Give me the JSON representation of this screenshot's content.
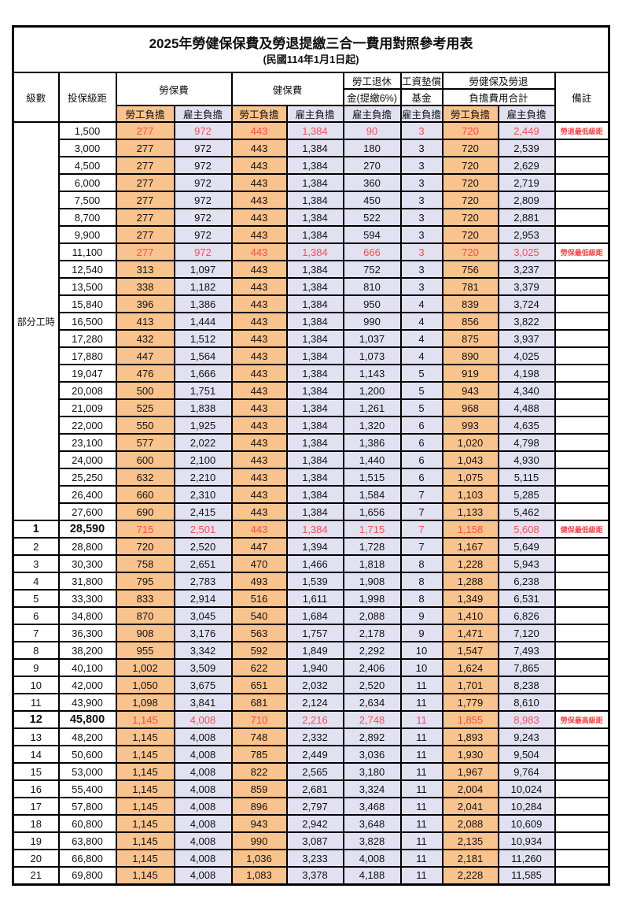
{
  "title": "2025年勞健保保費及勞退提繳三合一費用對照參考用表",
  "subtitle": "(民國114年1月1日起)",
  "colors": {
    "employee_bg": "#F9C38D",
    "employer_bg": "#E1E1F2",
    "highlight_text": "#FF4C4C",
    "border": "#000000"
  },
  "header": {
    "level": "級數",
    "salary_bracket": "投保級距",
    "labor_insurance": "勞保費",
    "health_insurance": "健保費",
    "pension_line1": "勞工退休",
    "pension_line2": "金(提繳6%)",
    "wage_fund_line1": "工資墊償",
    "wage_fund_line2": "基金",
    "total_line1": "勞健保及勞退",
    "total_line2": "負擔費用合計",
    "remarks": "備註",
    "employee_share": "勞工負擔",
    "employer_share": "雇主負擔"
  },
  "group_label": "部分工時",
  "rows": [
    {
      "group": true,
      "level": "",
      "salary": "1,500",
      "v": [
        "277",
        "972",
        "443",
        "1,384",
        "90",
        "3",
        "720",
        "2,449"
      ],
      "note": "勞退最低級距",
      "red": true,
      "bold": false
    },
    {
      "group": true,
      "level": "",
      "salary": "3,000",
      "v": [
        "277",
        "972",
        "443",
        "1,384",
        "180",
        "3",
        "720",
        "2,539"
      ],
      "note": "",
      "red": false,
      "bold": false
    },
    {
      "group": true,
      "level": "",
      "salary": "4,500",
      "v": [
        "277",
        "972",
        "443",
        "1,384",
        "270",
        "3",
        "720",
        "2,629"
      ],
      "note": "",
      "red": false,
      "bold": false
    },
    {
      "group": true,
      "level": "",
      "salary": "6,000",
      "v": [
        "277",
        "972",
        "443",
        "1,384",
        "360",
        "3",
        "720",
        "2,719"
      ],
      "note": "",
      "red": false,
      "bold": false
    },
    {
      "group": true,
      "level": "",
      "salary": "7,500",
      "v": [
        "277",
        "972",
        "443",
        "1,384",
        "450",
        "3",
        "720",
        "2,809"
      ],
      "note": "",
      "red": false,
      "bold": false
    },
    {
      "group": true,
      "level": "",
      "salary": "8,700",
      "v": [
        "277",
        "972",
        "443",
        "1,384",
        "522",
        "3",
        "720",
        "2,881"
      ],
      "note": "",
      "red": false,
      "bold": false
    },
    {
      "group": true,
      "level": "",
      "salary": "9,900",
      "v": [
        "277",
        "972",
        "443",
        "1,384",
        "594",
        "3",
        "720",
        "2,953"
      ],
      "note": "",
      "red": false,
      "bold": false
    },
    {
      "group": true,
      "level": "",
      "salary": "11,100",
      "v": [
        "277",
        "972",
        "443",
        "1,384",
        "666",
        "3",
        "720",
        "3,025"
      ],
      "note": "勞保最低級距",
      "red": true,
      "bold": false
    },
    {
      "group": true,
      "level": "",
      "salary": "12,540",
      "v": [
        "313",
        "1,097",
        "443",
        "1,384",
        "752",
        "3",
        "756",
        "3,237"
      ],
      "note": "",
      "red": false,
      "bold": false
    },
    {
      "group": true,
      "level": "",
      "salary": "13,500",
      "v": [
        "338",
        "1,182",
        "443",
        "1,384",
        "810",
        "3",
        "781",
        "3,379"
      ],
      "note": "",
      "red": false,
      "bold": false
    },
    {
      "group": true,
      "level": "",
      "salary": "15,840",
      "v": [
        "396",
        "1,386",
        "443",
        "1,384",
        "950",
        "4",
        "839",
        "3,724"
      ],
      "note": "",
      "red": false,
      "bold": false
    },
    {
      "group": true,
      "level": "",
      "salary": "16,500",
      "v": [
        "413",
        "1,444",
        "443",
        "1,384",
        "990",
        "4",
        "856",
        "3,822"
      ],
      "note": "",
      "red": false,
      "bold": false
    },
    {
      "group": true,
      "level": "",
      "salary": "17,280",
      "v": [
        "432",
        "1,512",
        "443",
        "1,384",
        "1,037",
        "4",
        "875",
        "3,937"
      ],
      "note": "",
      "red": false,
      "bold": false
    },
    {
      "group": true,
      "level": "",
      "salary": "17,880",
      "v": [
        "447",
        "1,564",
        "443",
        "1,384",
        "1,073",
        "4",
        "890",
        "4,025"
      ],
      "note": "",
      "red": false,
      "bold": false
    },
    {
      "group": true,
      "level": "",
      "salary": "19,047",
      "v": [
        "476",
        "1,666",
        "443",
        "1,384",
        "1,143",
        "5",
        "919",
        "4,198"
      ],
      "note": "",
      "red": false,
      "bold": false
    },
    {
      "group": true,
      "level": "",
      "salary": "20,008",
      "v": [
        "500",
        "1,751",
        "443",
        "1,384",
        "1,200",
        "5",
        "943",
        "4,340"
      ],
      "note": "",
      "red": false,
      "bold": false
    },
    {
      "group": true,
      "level": "",
      "salary": "21,009",
      "v": [
        "525",
        "1,838",
        "443",
        "1,384",
        "1,261",
        "5",
        "968",
        "4,488"
      ],
      "note": "",
      "red": false,
      "bold": false
    },
    {
      "group": true,
      "level": "",
      "salary": "22,000",
      "v": [
        "550",
        "1,925",
        "443",
        "1,384",
        "1,320",
        "6",
        "993",
        "4,635"
      ],
      "note": "",
      "red": false,
      "bold": false
    },
    {
      "group": true,
      "level": "",
      "salary": "23,100",
      "v": [
        "577",
        "2,022",
        "443",
        "1,384",
        "1,386",
        "6",
        "1,020",
        "4,798"
      ],
      "note": "",
      "red": false,
      "bold": false
    },
    {
      "group": true,
      "level": "",
      "salary": "24,000",
      "v": [
        "600",
        "2,100",
        "443",
        "1,384",
        "1,440",
        "6",
        "1,043",
        "4,930"
      ],
      "note": "",
      "red": false,
      "bold": false
    },
    {
      "group": true,
      "level": "",
      "salary": "25,250",
      "v": [
        "632",
        "2,210",
        "443",
        "1,384",
        "1,515",
        "6",
        "1,075",
        "5,115"
      ],
      "note": "",
      "red": false,
      "bold": false
    },
    {
      "group": true,
      "level": "",
      "salary": "26,400",
      "v": [
        "660",
        "2,310",
        "443",
        "1,384",
        "1,584",
        "7",
        "1,103",
        "5,285"
      ],
      "note": "",
      "red": false,
      "bold": false
    },
    {
      "group": true,
      "level": "",
      "salary": "27,600",
      "v": [
        "690",
        "2,415",
        "443",
        "1,384",
        "1,656",
        "7",
        "1,133",
        "5,462"
      ],
      "note": "",
      "red": false,
      "bold": false
    },
    {
      "group": false,
      "level": "1",
      "salary": "28,590",
      "v": [
        "715",
        "2,501",
        "443",
        "1,384",
        "1,715",
        "7",
        "1,158",
        "5,608"
      ],
      "note": "健保最低級距",
      "red": true,
      "bold": true
    },
    {
      "group": false,
      "level": "2",
      "salary": "28,800",
      "v": [
        "720",
        "2,520",
        "447",
        "1,394",
        "1,728",
        "7",
        "1,167",
        "5,649"
      ],
      "note": "",
      "red": false,
      "bold": false
    },
    {
      "group": false,
      "level": "3",
      "salary": "30,300",
      "v": [
        "758",
        "2,651",
        "470",
        "1,466",
        "1,818",
        "8",
        "1,228",
        "5,943"
      ],
      "note": "",
      "red": false,
      "bold": false
    },
    {
      "group": false,
      "level": "4",
      "salary": "31,800",
      "v": [
        "795",
        "2,783",
        "493",
        "1,539",
        "1,908",
        "8",
        "1,288",
        "6,238"
      ],
      "note": "",
      "red": false,
      "bold": false
    },
    {
      "group": false,
      "level": "5",
      "salary": "33,300",
      "v": [
        "833",
        "2,914",
        "516",
        "1,611",
        "1,998",
        "8",
        "1,349",
        "6,531"
      ],
      "note": "",
      "red": false,
      "bold": false
    },
    {
      "group": false,
      "level": "6",
      "salary": "34,800",
      "v": [
        "870",
        "3,045",
        "540",
        "1,684",
        "2,088",
        "9",
        "1,410",
        "6,826"
      ],
      "note": "",
      "red": false,
      "bold": false
    },
    {
      "group": false,
      "level": "7",
      "salary": "36,300",
      "v": [
        "908",
        "3,176",
        "563",
        "1,757",
        "2,178",
        "9",
        "1,471",
        "7,120"
      ],
      "note": "",
      "red": false,
      "bold": false
    },
    {
      "group": false,
      "level": "8",
      "salary": "38,200",
      "v": [
        "955",
        "3,342",
        "592",
        "1,849",
        "2,292",
        "10",
        "1,547",
        "7,493"
      ],
      "note": "",
      "red": false,
      "bold": false
    },
    {
      "group": false,
      "level": "9",
      "salary": "40,100",
      "v": [
        "1,002",
        "3,509",
        "622",
        "1,940",
        "2,406",
        "10",
        "1,624",
        "7,865"
      ],
      "note": "",
      "red": false,
      "bold": false
    },
    {
      "group": false,
      "level": "10",
      "salary": "42,000",
      "v": [
        "1,050",
        "3,675",
        "651",
        "2,032",
        "2,520",
        "11",
        "1,701",
        "8,238"
      ],
      "note": "",
      "red": false,
      "bold": false
    },
    {
      "group": false,
      "level": "11",
      "salary": "43,900",
      "v": [
        "1,098",
        "3,841",
        "681",
        "2,124",
        "2,634",
        "11",
        "1,779",
        "8,610"
      ],
      "note": "",
      "red": false,
      "bold": false
    },
    {
      "group": false,
      "level": "12",
      "salary": "45,800",
      "v": [
        "1,145",
        "4,008",
        "710",
        "2,216",
        "2,748",
        "11",
        "1,855",
        "8,983"
      ],
      "note": "勞保最高級距",
      "red": true,
      "bold": true
    },
    {
      "group": false,
      "level": "13",
      "salary": "48,200",
      "v": [
        "1,145",
        "4,008",
        "748",
        "2,332",
        "2,892",
        "11",
        "1,893",
        "9,243"
      ],
      "note": "",
      "red": false,
      "bold": false
    },
    {
      "group": false,
      "level": "14",
      "salary": "50,600",
      "v": [
        "1,145",
        "4,008",
        "785",
        "2,449",
        "3,036",
        "11",
        "1,930",
        "9,504"
      ],
      "note": "",
      "red": false,
      "bold": false
    },
    {
      "group": false,
      "level": "15",
      "salary": "53,000",
      "v": [
        "1,145",
        "4,008",
        "822",
        "2,565",
        "3,180",
        "11",
        "1,967",
        "9,764"
      ],
      "note": "",
      "red": false,
      "bold": false
    },
    {
      "group": false,
      "level": "16",
      "salary": "55,400",
      "v": [
        "1,145",
        "4,008",
        "859",
        "2,681",
        "3,324",
        "11",
        "2,004",
        "10,024"
      ],
      "note": "",
      "red": false,
      "bold": false
    },
    {
      "group": false,
      "level": "17",
      "salary": "57,800",
      "v": [
        "1,145",
        "4,008",
        "896",
        "2,797",
        "3,468",
        "11",
        "2,041",
        "10,284"
      ],
      "note": "",
      "red": false,
      "bold": false
    },
    {
      "group": false,
      "level": "18",
      "salary": "60,800",
      "v": [
        "1,145",
        "4,008",
        "943",
        "2,942",
        "3,648",
        "11",
        "2,088",
        "10,609"
      ],
      "note": "",
      "red": false,
      "bold": false
    },
    {
      "group": false,
      "level": "19",
      "salary": "63,800",
      "v": [
        "1,145",
        "4,008",
        "990",
        "3,087",
        "3,828",
        "11",
        "2,135",
        "10,934"
      ],
      "note": "",
      "red": false,
      "bold": false
    },
    {
      "group": false,
      "level": "20",
      "salary": "66,800",
      "v": [
        "1,145",
        "4,008",
        "1,036",
        "3,233",
        "4,008",
        "11",
        "2,181",
        "11,260"
      ],
      "note": "",
      "red": false,
      "bold": false
    },
    {
      "group": false,
      "level": "21",
      "salary": "69,800",
      "v": [
        "1,145",
        "4,008",
        "1,083",
        "3,378",
        "4,188",
        "11",
        "2,228",
        "11,585"
      ],
      "note": "",
      "red": false,
      "bold": false
    }
  ]
}
